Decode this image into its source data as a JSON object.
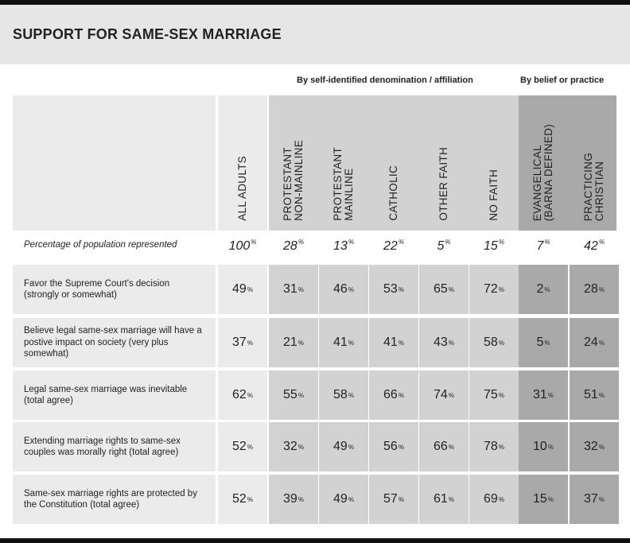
{
  "title": "SUPPORT FOR SAME-SEX MARRIAGE",
  "groups": {
    "denomination": "By self-identified denomination / affiliation",
    "belief": "By belief or practice"
  },
  "chart_data": {
    "type": "table",
    "unit": "%",
    "columns": [
      {
        "label": "ALL ADULTS",
        "group": "all"
      },
      {
        "label": "PROTESTANT\nNON-MAINLINE",
        "group": "denomination"
      },
      {
        "label": "PROTESTANT\nMAINLINE",
        "group": "denomination"
      },
      {
        "label": "CATHOLIC",
        "group": "denomination"
      },
      {
        "label": "OTHER FAITH",
        "group": "denomination"
      },
      {
        "label": "NO FAITH",
        "group": "denomination"
      },
      {
        "label": "EVANGELICAL\n(BARNA DEFINED)",
        "group": "belief"
      },
      {
        "label": "PRACTICING\nCHRISTIAN",
        "group": "belief"
      }
    ],
    "population": {
      "label": "Percentage of population represented",
      "values": [
        100,
        28,
        13,
        22,
        5,
        15,
        7,
        42
      ]
    },
    "rows": [
      {
        "label": "Favor the Supreme Court's decision (strongly or somewhat)",
        "values": [
          49,
          31,
          46,
          53,
          65,
          72,
          2,
          28
        ]
      },
      {
        "label": "Believe legal same-sex marriage will have a postive impact on society (very plus somewhat)",
        "values": [
          37,
          21,
          41,
          41,
          43,
          58,
          5,
          24
        ]
      },
      {
        "label": "Legal same-sex marriage was inevitable (total agree)",
        "values": [
          62,
          55,
          58,
          66,
          74,
          75,
          31,
          51
        ]
      },
      {
        "label": "Extending marriage rights to same-sex couples was morally right (total agree)",
        "values": [
          52,
          32,
          49,
          56,
          66,
          78,
          10,
          32
        ]
      },
      {
        "label": "Same-sex marriage rights are protected by the Constitution (total agree)",
        "values": [
          52,
          39,
          49,
          57,
          61,
          69,
          15,
          37
        ]
      }
    ]
  }
}
